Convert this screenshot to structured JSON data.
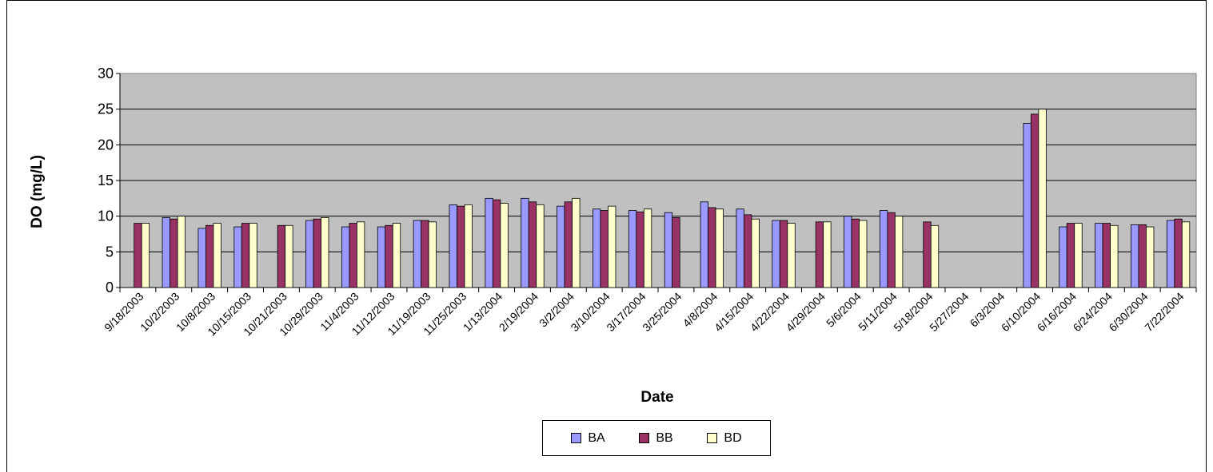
{
  "chart_data": {
    "type": "bar",
    "title": "",
    "xlabel": "Date",
    "ylabel": "DO (mg/L)",
    "ylim": [
      0,
      30
    ],
    "yticks": [
      "0",
      "5",
      "10",
      "15",
      "20",
      "25",
      "30"
    ],
    "grid": "horizontal",
    "legend_position": "bottom",
    "plot_background": "#c0c0c0",
    "categories": [
      "9/18/2003",
      "10/2/2003",
      "10/8/2003",
      "10/15/2003",
      "10/21/2003",
      "10/29/2003",
      "11/4/2003",
      "11/12/2003",
      "11/19/2003",
      "11/25/2003",
      "1/13/2004",
      "2/19/2004",
      "3/2/2004",
      "3/10/2004",
      "3/17/2004",
      "3/25/2004",
      "4/8/2004",
      "4/15/2004",
      "4/22/2004",
      "4/29/2004",
      "5/6/2004",
      "5/11/2004",
      "5/18/2004",
      "5/27/2004",
      "6/3/2004",
      "6/10/2004",
      "6/16/2004",
      "6/24/2004",
      "6/30/2004",
      "7/22/2004"
    ],
    "series": [
      {
        "name": "BA",
        "color": "#9999ff",
        "values": [
          null,
          9.8,
          8.3,
          8.5,
          null,
          9.4,
          8.5,
          8.5,
          9.4,
          11.6,
          12.5,
          12.5,
          11.4,
          11.0,
          10.8,
          10.5,
          12.0,
          11.0,
          9.4,
          null,
          10.0,
          10.8,
          null,
          null,
          null,
          23.0,
          8.5,
          9.0,
          8.8,
          9.4
        ]
      },
      {
        "name": "BB",
        "color": "#993366",
        "values": [
          9.0,
          9.6,
          8.7,
          9.0,
          8.7,
          9.6,
          9.0,
          8.7,
          9.4,
          11.4,
          12.3,
          12.0,
          12.0,
          10.8,
          10.6,
          9.8,
          11.2,
          10.2,
          9.4,
          9.2,
          9.6,
          10.5,
          9.2,
          null,
          null,
          24.3,
          9.0,
          9.0,
          8.8,
          9.6
        ]
      },
      {
        "name": "BD",
        "color": "#ffffcc",
        "values": [
          9.0,
          10.0,
          9.0,
          9.0,
          8.7,
          9.8,
          9.2,
          9.0,
          9.2,
          11.6,
          11.8,
          11.6,
          12.5,
          11.4,
          11.0,
          null,
          11.0,
          9.6,
          9.0,
          9.2,
          9.4,
          10.0,
          8.7,
          null,
          null,
          25.0,
          9.0,
          8.7,
          8.5,
          9.2
        ]
      }
    ]
  }
}
